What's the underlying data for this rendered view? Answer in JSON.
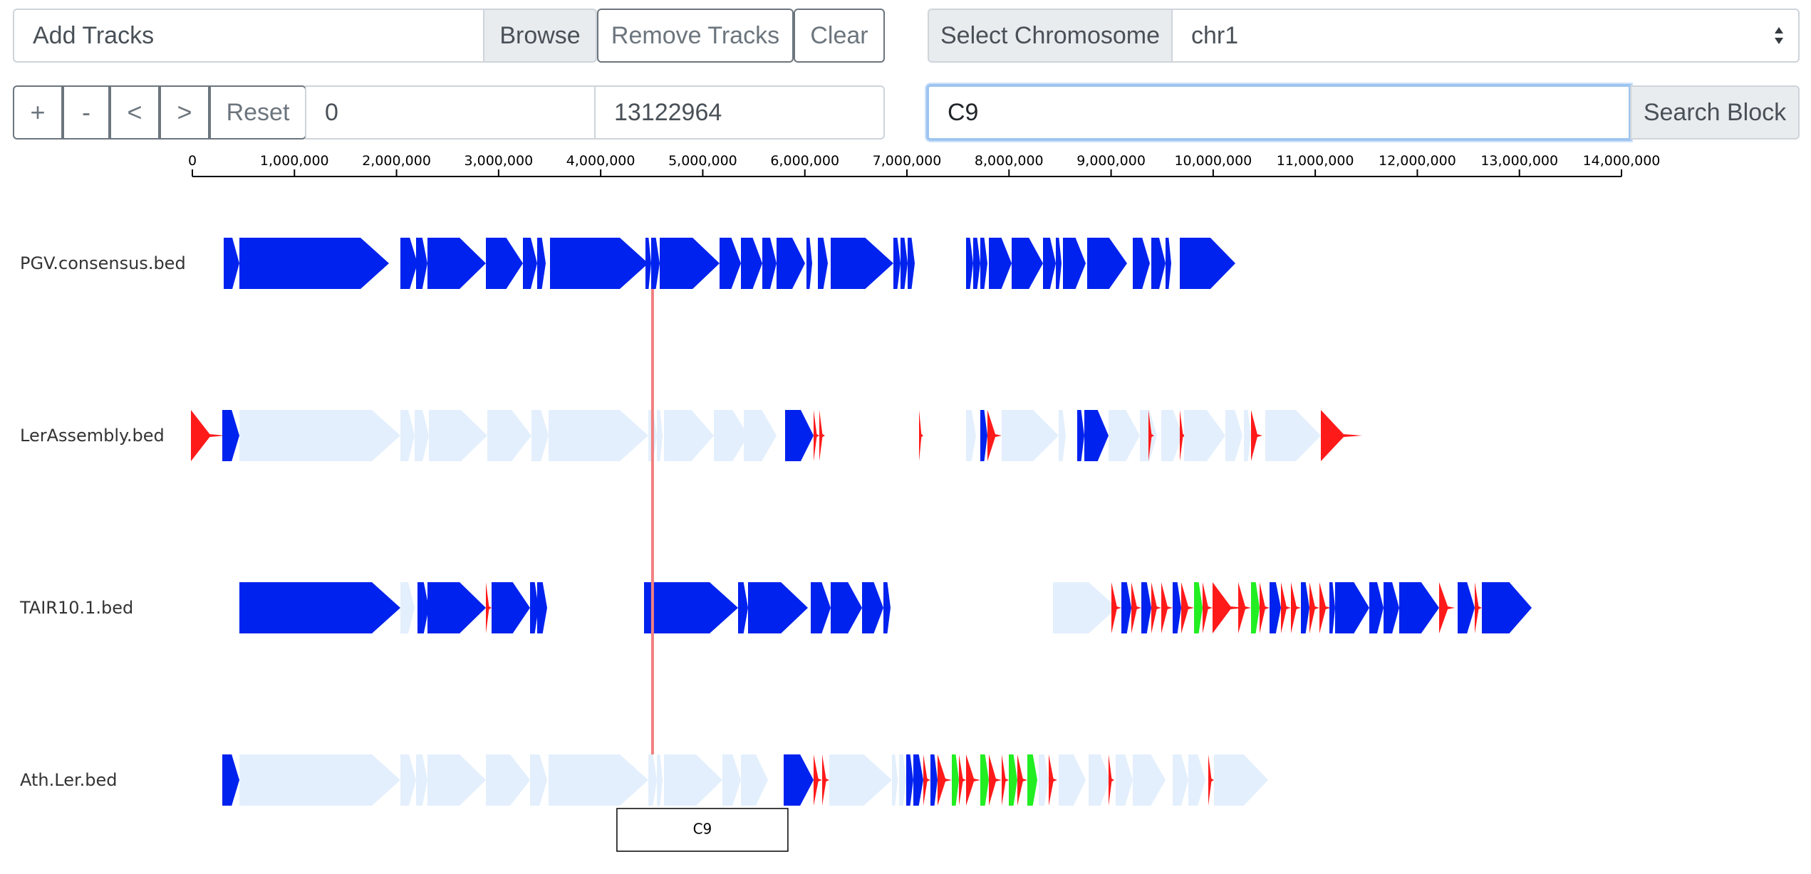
{
  "toolbar": {
    "add_tracks_placeholder": "Add Tracks",
    "browse_label": "Browse",
    "remove_tracks_label": "Remove Tracks",
    "clear_label": "Clear",
    "select_chromosome_label": "Select Chromosome",
    "chromosome_value": "chr1"
  },
  "nav": {
    "zoom_in_label": "+",
    "zoom_out_label": "-",
    "pan_left_label": "<",
    "pan_right_label": ">",
    "reset_label": "Reset",
    "range_start": "0",
    "range_end": "13122964",
    "search_value": "C9",
    "search_block_label": "Search Block"
  },
  "ruler": {
    "ticks": [
      "0",
      "1,000,000",
      "2,000,000",
      "3,000,000",
      "4,000,000",
      "5,000,000",
      "6,000,000",
      "7,000,000",
      "8,000,000",
      "9,000,000",
      "10,000,000",
      "11,000,000",
      "12,000,000",
      "13,000,000",
      "14,000,000"
    ],
    "max": 14000000
  },
  "tracks": [
    {
      "name": "PGV.consensus.bed"
    },
    {
      "name": "LerAssembly.bed"
    },
    {
      "name": "TAIR10.1.bed"
    },
    {
      "name": "Ath.Ler.bed"
    }
  ],
  "highlight": {
    "label": "C9",
    "position": 4480000
  },
  "colors": {
    "forward": "#0022ee",
    "reverse": "#ff1a1a",
    "other": "#22ee22",
    "absent": "#e3effc",
    "highlight_line": "#f08080"
  }
}
